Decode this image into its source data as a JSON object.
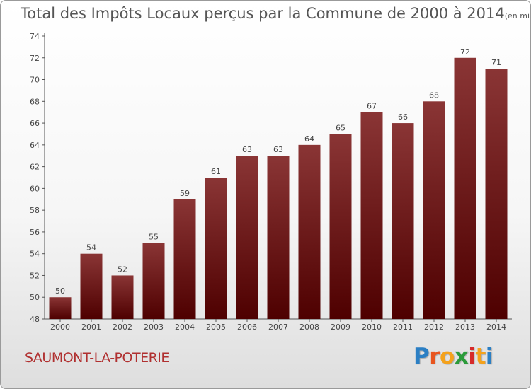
{
  "chart_data": {
    "type": "bar",
    "title": "Total des Impôts Locaux perçus par la Commune de 2000 à 2014",
    "unit": "(en milliers d'€)",
    "categories": [
      "2000",
      "2001",
      "2002",
      "2003",
      "2004",
      "2005",
      "2006",
      "2007",
      "2008",
      "2009",
      "2010",
      "2011",
      "2012",
      "2013",
      "2014"
    ],
    "values": [
      50,
      54,
      52,
      55,
      59,
      61,
      63,
      63,
      64,
      65,
      67,
      66,
      68,
      72,
      71
    ],
    "yticks": [
      48,
      50,
      52,
      54,
      56,
      58,
      60,
      62,
      64,
      66,
      68,
      70,
      72,
      74
    ],
    "ylim": [
      48,
      74
    ],
    "xlabel": "",
    "ylabel": "",
    "grid": false,
    "bar_color_top": "#8a3535",
    "bar_color_bottom": "#4e0000"
  },
  "commune": "SAUMONT-LA-POTERIE",
  "logo": {
    "letters": [
      "P",
      "r",
      "o",
      "x",
      "i",
      "t",
      "i"
    ],
    "colors": [
      "#2b7fc4",
      "#e8551f",
      "#f4a21c",
      "#2b9b3a",
      "#d62a2a",
      "#f4a21c",
      "#2b7fc4"
    ]
  }
}
